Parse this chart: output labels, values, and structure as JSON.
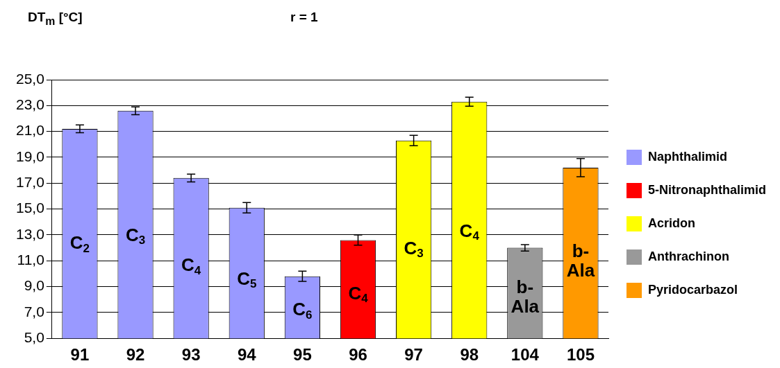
{
  "chart_data": {
    "type": "bar",
    "ylabel": "DT$_{m}$ [°C]",
    "annotations": [
      "r = 1",
      "C$_{2}$",
      "C$_{3}$",
      "C$_{4}$",
      "C$_{5}$",
      "C$_{6}$",
      "C$_{4}$",
      "C$_{3}$",
      "C$_{4}$",
      "b-Ala",
      "b-Ala"
    ],
    "categories": [
      "91",
      "92",
      "93",
      "94",
      "95",
      "96",
      "97",
      "98",
      "104",
      "105"
    ],
    "ylim": [
      5,
      25
    ],
    "yticks": [
      {
        "value": 5,
        "label": "5,0"
      },
      {
        "value": 7,
        "label": "7,0"
      },
      {
        "value": 9,
        "label": "9,0"
      },
      {
        "value": 11,
        "label": "11,0"
      },
      {
        "value": 13,
        "label": "13,0"
      },
      {
        "value": 15,
        "label": "15,0"
      },
      {
        "value": 17,
        "label": "17,0"
      },
      {
        "value": 19,
        "label": "19,0"
      },
      {
        "value": 21,
        "label": "21,0"
      },
      {
        "value": 23,
        "label": "23,0"
      },
      {
        "value": 25,
        "label": "25,0"
      }
    ],
    "grid": "y",
    "legend": "right",
    "series": [
      {
        "name": "Naphthalimid",
        "color": "#9999ff",
        "values": [
          21.2,
          22.6,
          17.4,
          15.1,
          9.8,
          null,
          null,
          null,
          null,
          null
        ],
        "errors": [
          0.3,
          0.3,
          0.3,
          0.4,
          0.4,
          null,
          null,
          null,
          null,
          null
        ]
      },
      {
        "name": "5-Nitronaphthalimid",
        "color": "#ff0000",
        "values": [
          null,
          null,
          null,
          null,
          null,
          12.6,
          null,
          null,
          null,
          null
        ],
        "errors": [
          null,
          null,
          null,
          null,
          null,
          0.4,
          null,
          null,
          null,
          null
        ]
      },
      {
        "name": "Acridon",
        "color": "#ffff00",
        "values": [
          null,
          null,
          null,
          null,
          null,
          null,
          20.3,
          23.3,
          null,
          null
        ],
        "errors": [
          null,
          null,
          null,
          null,
          null,
          null,
          0.4,
          0.35,
          null,
          null
        ]
      },
      {
        "name": "Anthrachinon",
        "color": "#999999",
        "values": [
          null,
          null,
          null,
          null,
          null,
          null,
          null,
          null,
          12.0,
          null
        ],
        "errors": [
          null,
          null,
          null,
          null,
          null,
          null,
          null,
          null,
          0.25,
          null
        ]
      },
      {
        "name": "Pyridocarbazol",
        "color": "#ff9900",
        "values": [
          null,
          null,
          null,
          null,
          null,
          null,
          null,
          null,
          null,
          18.2
        ],
        "errors": [
          null,
          null,
          null,
          null,
          null,
          null,
          null,
          null,
          null,
          0.7
        ]
      }
    ]
  }
}
